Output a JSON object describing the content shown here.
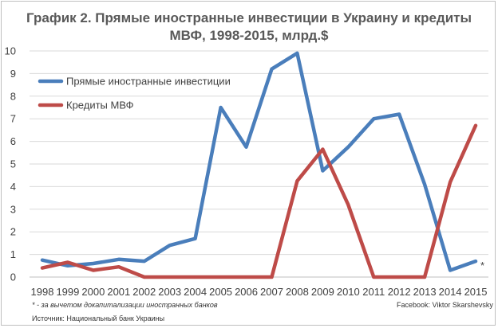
{
  "title_line1": "График 2. Прямые иностранные инвестиции в Украину и кредиты",
  "title_line2": "МВФ, 1998-2015, млрд.$",
  "footnote": "* - за вычетом докапитализации иностранных банков",
  "credit": "Facebook: Viktor Skarshevsky",
  "source": "Источник: Национальный банк Украины",
  "marker_2015": "*",
  "colors": {
    "fdi": "#4a7ebb",
    "imf": "#be4b48",
    "grid": "#d9d9d9"
  },
  "chart_data": {
    "type": "line",
    "x": [
      1998,
      1999,
      2000,
      2001,
      2002,
      2003,
      2004,
      2005,
      2006,
      2007,
      2008,
      2009,
      2010,
      2011,
      2012,
      2013,
      2014,
      2015
    ],
    "series": [
      {
        "name": "Прямые иностранные инвестиции",
        "values": [
          0.75,
          0.5,
          0.6,
          0.78,
          0.7,
          1.4,
          1.7,
          7.5,
          5.75,
          9.2,
          9.9,
          4.7,
          5.75,
          7.0,
          7.2,
          4.1,
          0.3,
          0.7
        ],
        "color": "#4a7ebb"
      },
      {
        "name": "Кредиты МВФ",
        "values": [
          0.4,
          0.65,
          0.3,
          0.45,
          0.0,
          0.0,
          0.0,
          0.0,
          0.0,
          0.0,
          4.25,
          5.65,
          3.2,
          0.0,
          0.0,
          0.0,
          4.2,
          6.7
        ],
        "color": "#be4b48"
      }
    ],
    "ylim": [
      0,
      10
    ],
    "yticks": [
      0,
      1,
      2,
      3,
      4,
      5,
      6,
      7,
      8,
      9,
      10
    ],
    "grid": true,
    "legend_position": "top-left"
  }
}
